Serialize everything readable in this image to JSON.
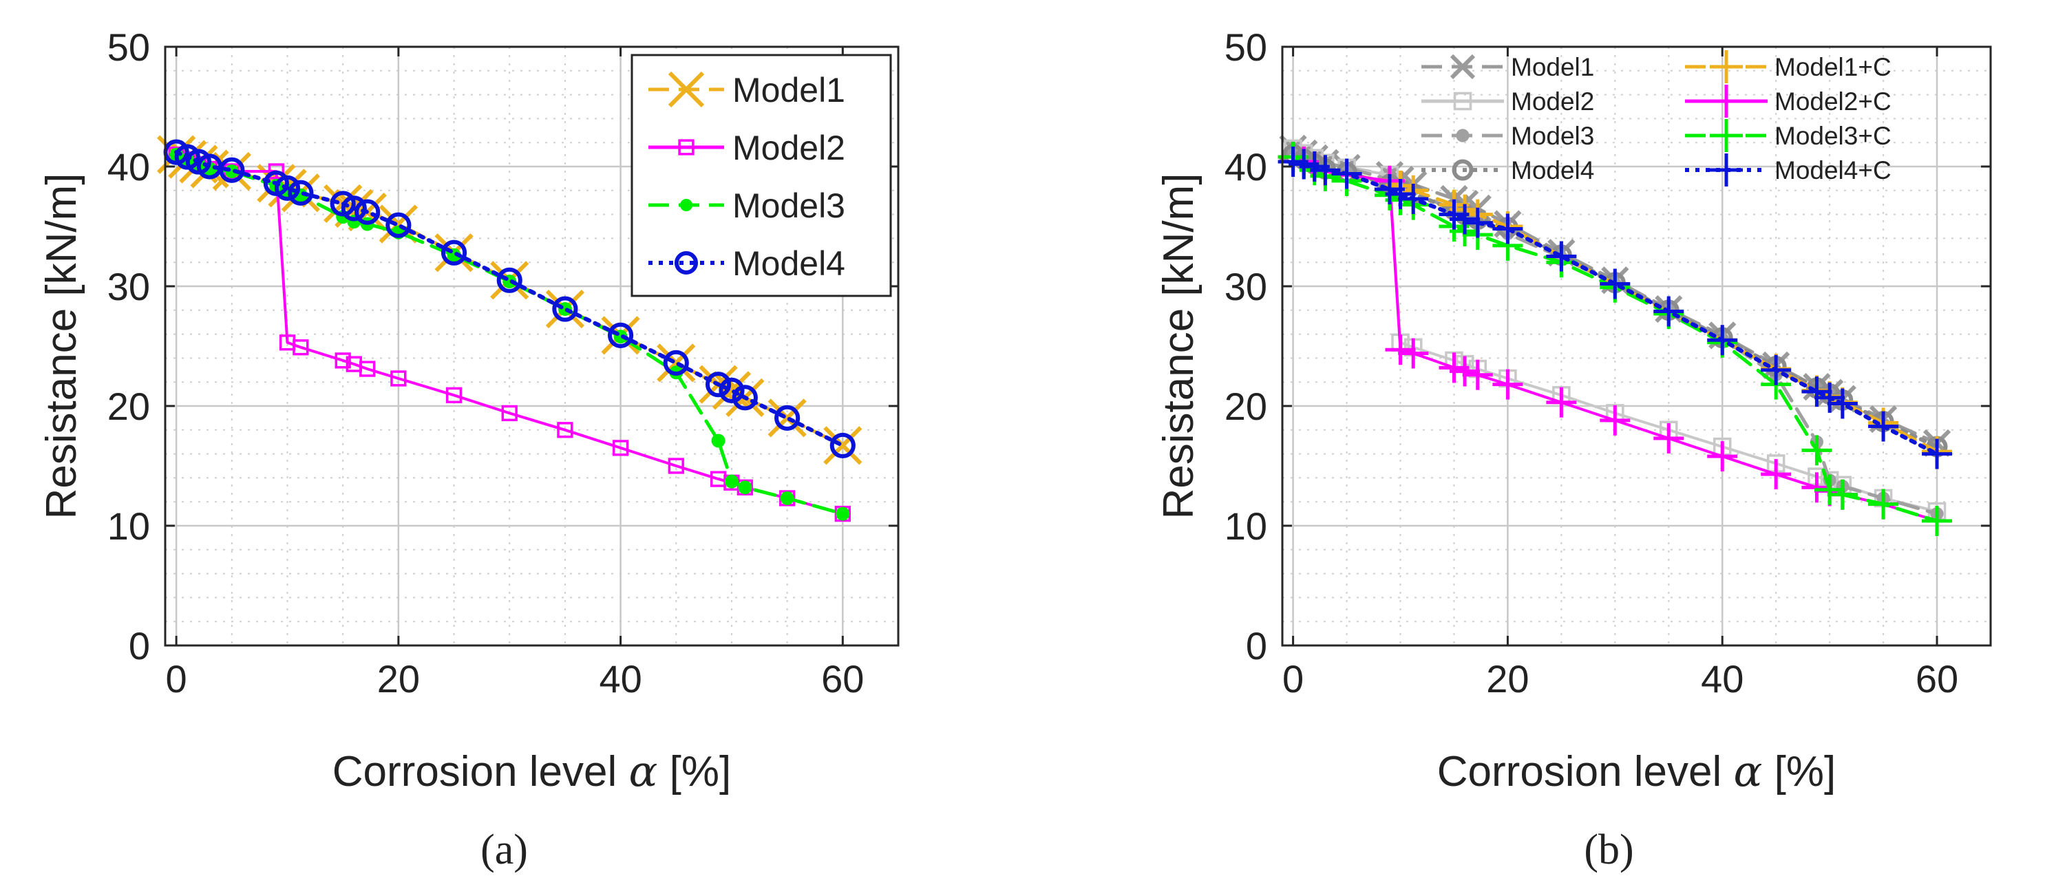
{
  "chart_data": [
    {
      "panel": "(a)",
      "type": "line",
      "xlabel": "Corrosion level α [%]",
      "ylabel": "Resistance [kN/m]",
      "xlim": [
        -1,
        65
      ],
      "ylim": [
        0,
        50
      ],
      "xticks": [
        0,
        20,
        40,
        60
      ],
      "yticks": [
        0,
        10,
        20,
        30,
        40,
        50
      ],
      "grid": true,
      "minor_grid": true,
      "legend": "top-right",
      "series": [
        {
          "name": "Model1",
          "color": "#EDB120",
          "line": "dashed",
          "marker": "x",
          "x": [
            0,
            1,
            2,
            3,
            5,
            9,
            10,
            11.2,
            15,
            16,
            17.2,
            20,
            25,
            30,
            35,
            40,
            45,
            48.8,
            50,
            51.2,
            55,
            60
          ],
          "y": [
            41,
            40.6,
            40.2,
            39.8,
            39.6,
            38.6,
            38.2,
            37.8,
            36.9,
            36.5,
            36.2,
            35.2,
            32.8,
            30.5,
            28.1,
            25.9,
            23.6,
            21.8,
            21.3,
            20.7,
            19.0,
            16.7
          ]
        },
        {
          "name": "Model2",
          "color": "#FF00FF",
          "line": "solid",
          "marker": "square",
          "x": [
            0,
            1,
            2,
            3,
            5,
            9,
            10,
            11.2,
            15,
            16,
            17.2,
            20,
            25,
            30,
            35,
            40,
            45,
            48.8,
            50,
            51.2,
            55,
            60
          ],
          "y": [
            41,
            40.6,
            40.2,
            39.8,
            39.6,
            39.6,
            25.3,
            24.9,
            23.8,
            23.5,
            23.1,
            22.3,
            20.9,
            19.4,
            18.0,
            16.5,
            15.0,
            13.9,
            13.6,
            13.2,
            12.3,
            11.0
          ]
        },
        {
          "name": "Model3",
          "color": "#00EE00",
          "line": "dashed",
          "marker": "dot",
          "x": [
            0,
            1,
            2,
            3,
            5,
            9,
            10,
            11.2,
            15,
            16,
            17.2,
            20,
            25,
            30,
            35,
            40,
            45,
            48.8,
            50,
            51.2,
            55,
            60
          ],
          "y": [
            41,
            40.6,
            40.2,
            39.8,
            39.6,
            38.4,
            38.0,
            37.6,
            35.8,
            35.4,
            35.2,
            34.5,
            32.6,
            30.4,
            28.1,
            25.8,
            22.8,
            17.1,
            13.7,
            13.2,
            12.3,
            11.0
          ]
        },
        {
          "name": "Model4",
          "color": "#0A14D8",
          "line": "dotted",
          "marker": "circle",
          "x": [
            0,
            1,
            2,
            3,
            5,
            9,
            10,
            11.2,
            15,
            16,
            17.2,
            20,
            25,
            30,
            35,
            40,
            45,
            48.8,
            50,
            51.2,
            55,
            60
          ],
          "y": [
            41.2,
            40.8,
            40.4,
            40.0,
            39.7,
            38.6,
            38.2,
            37.8,
            36.9,
            36.5,
            36.2,
            35.1,
            32.8,
            30.5,
            28.1,
            25.9,
            23.6,
            21.8,
            21.3,
            20.7,
            19.0,
            16.7
          ]
        }
      ]
    },
    {
      "panel": "(b)",
      "type": "line",
      "xlabel": "Corrosion level α [%]",
      "ylabel": "Resistance [kN/m]",
      "xlim": [
        -1,
        65
      ],
      "ylim": [
        0,
        50
      ],
      "xticks": [
        0,
        20,
        40,
        60
      ],
      "yticks": [
        0,
        10,
        20,
        30,
        40,
        50
      ],
      "grid": true,
      "minor_grid": true,
      "legend": "top, two columns",
      "series": [
        {
          "name": "Model1",
          "color": "#9A9A9A",
          "line": "dashed",
          "marker": "x",
          "x": [
            0,
            1,
            2,
            3,
            5,
            9,
            10,
            11.2,
            15,
            16,
            17.2,
            20,
            25,
            30,
            35,
            40,
            45,
            48.8,
            50,
            51.2,
            55,
            60
          ],
          "y": [
            41.5,
            41.1,
            40.7,
            40.3,
            39.9,
            39.3,
            38.9,
            38.5,
            37.3,
            36.9,
            36.5,
            35.2,
            32.8,
            30.5,
            28.1,
            25.9,
            23.4,
            21.6,
            21.1,
            20.6,
            18.9,
            16.9
          ]
        },
        {
          "name": "Model2",
          "color": "#C8C8C8",
          "line": "solid",
          "marker": "square",
          "x": [
            0,
            1,
            2,
            3,
            5,
            9,
            10,
            11.2,
            15,
            16,
            17.2,
            20,
            25,
            30,
            35,
            40,
            45,
            48.8,
            50,
            51.2,
            55,
            60
          ],
          "y": [
            41.5,
            41.1,
            40.7,
            40.3,
            39.9,
            39.3,
            25.3,
            24.9,
            23.8,
            23.5,
            23.1,
            22.3,
            20.9,
            19.4,
            18.0,
            16.6,
            15.2,
            14.1,
            13.8,
            13.4,
            12.3,
            11.2
          ]
        },
        {
          "name": "Model3",
          "color": "#A0A0A0",
          "line": "dashed",
          "marker": "dot",
          "x": [
            0,
            1,
            2,
            3,
            5,
            9,
            10,
            11.2,
            15,
            16,
            17.2,
            20,
            25,
            30,
            35,
            40,
            45,
            48.8,
            50,
            51.2,
            55,
            60
          ],
          "y": [
            41.5,
            41.1,
            40.7,
            40.3,
            39.9,
            38.9,
            38.5,
            38.1,
            36.2,
            35.8,
            35.4,
            34.4,
            32.4,
            30.2,
            28.0,
            25.6,
            22.6,
            17.0,
            13.8,
            13.3,
            12.3,
            11.0
          ]
        },
        {
          "name": "Model4",
          "color": "#8C8C8C",
          "line": "dotted",
          "marker": "circle",
          "x": [
            0,
            1,
            2,
            3,
            5,
            9,
            10,
            11.2,
            15,
            16,
            17.2,
            20,
            25,
            30,
            35,
            40,
            45,
            48.8,
            50,
            51.2,
            55,
            60
          ],
          "y": [
            41.0,
            40.6,
            40.2,
            39.8,
            39.5,
            38.5,
            38.1,
            37.7,
            36.4,
            36.0,
            35.6,
            34.9,
            32.6,
            30.3,
            28.0,
            25.7,
            23.3,
            21.5,
            21.0,
            20.5,
            18.7,
            16.6
          ]
        },
        {
          "name": "Model1+C",
          "color": "#EDB120",
          "line": "dashed",
          "marker": "plus",
          "x": [
            0,
            1,
            2,
            3,
            5,
            9,
            10,
            11.2,
            15,
            16,
            17.2,
            20,
            25,
            30,
            35,
            40,
            45,
            48.8,
            50,
            51.2,
            55,
            60
          ],
          "y": [
            40.8,
            40.4,
            40.0,
            39.6,
            39.3,
            38.8,
            38.4,
            38.0,
            36.8,
            36.4,
            36.0,
            35.0,
            32.5,
            30.2,
            27.8,
            25.5,
            23.1,
            21.3,
            20.8,
            20.3,
            18.6,
            16.2
          ]
        },
        {
          "name": "Model2+C",
          "color": "#FF00FF",
          "line": "solid",
          "marker": "plus",
          "x": [
            0,
            1,
            2,
            3,
            5,
            9,
            10,
            11.2,
            15,
            16,
            17.2,
            20,
            25,
            30,
            35,
            40,
            45,
            48.8,
            50,
            51.2,
            55,
            60
          ],
          "y": [
            40.8,
            40.4,
            40.0,
            39.6,
            39.3,
            38.8,
            24.7,
            24.4,
            23.2,
            22.9,
            22.6,
            21.8,
            20.3,
            18.8,
            17.3,
            15.8,
            14.3,
            13.2,
            12.9,
            12.6,
            11.8,
            10.4
          ]
        },
        {
          "name": "Model3+C",
          "color": "#00EE00",
          "line": "dashed",
          "marker": "plus",
          "x": [
            0,
            1,
            2,
            3,
            5,
            9,
            10,
            11.2,
            15,
            16,
            17.2,
            20,
            25,
            30,
            35,
            40,
            45,
            48.8,
            50,
            51.2,
            55,
            60
          ],
          "y": [
            40.8,
            40.2,
            39.7,
            39.2,
            38.8,
            37.6,
            37.2,
            36.8,
            35.0,
            34.6,
            34.3,
            33.4,
            32.0,
            29.9,
            27.7,
            25.3,
            21.8,
            16.3,
            13.0,
            12.6,
            11.8,
            10.4
          ]
        },
        {
          "name": "Model4+C",
          "color": "#0A14D8",
          "line": "dotted",
          "marker": "plus",
          "x": [
            0,
            1,
            2,
            3,
            5,
            9,
            10,
            11.2,
            15,
            16,
            17.2,
            20,
            25,
            30,
            35,
            40,
            45,
            48.8,
            50,
            51.2,
            55,
            60
          ],
          "y": [
            40.4,
            40.2,
            40.0,
            39.7,
            39.4,
            38.1,
            37.7,
            37.3,
            36.0,
            35.6,
            35.3,
            34.8,
            32.5,
            30.2,
            27.9,
            25.5,
            23.0,
            21.2,
            20.7,
            20.2,
            18.3,
            16.0
          ]
        }
      ]
    }
  ]
}
